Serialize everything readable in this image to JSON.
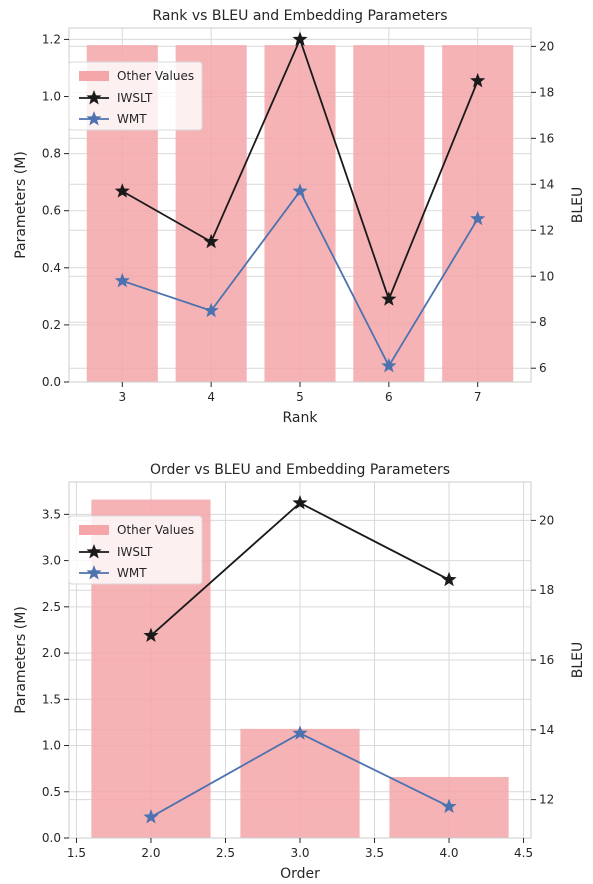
{
  "chart_data": [
    {
      "type": "bar",
      "title": "Rank vs BLEU and Embedding Parameters",
      "xlabel": "Rank",
      "ylabel": "Parameters (M)",
      "ylabel_right": "BLEU",
      "x_ticks": [
        "3",
        "4",
        "5",
        "6",
        "7"
      ],
      "y_ticks": [
        "0.0",
        "0.2",
        "0.4",
        "0.6",
        "0.8",
        "1.0",
        "1.2"
      ],
      "y2_ticks": [
        "6",
        "8",
        "10",
        "12",
        "14",
        "16",
        "18",
        "20"
      ],
      "xlim": [
        2.4,
        7.6
      ],
      "ylim": [
        0,
        1.24
      ],
      "y2lim": [
        5.4,
        20.8
      ],
      "bars": {
        "name": "Other Values",
        "color": "#f4a6a9",
        "x": [
          3,
          4,
          5,
          6,
          7
        ],
        "values": [
          1.18,
          1.18,
          1.18,
          1.18,
          1.18
        ],
        "width": 0.8
      },
      "lines": [
        {
          "name": "IWSLT",
          "color": "#1a1a1a",
          "x": [
            3,
            4,
            5,
            6,
            7
          ],
          "values": [
            13.7,
            11.5,
            20.3,
            9.0,
            18.5
          ]
        },
        {
          "name": "WMT",
          "color": "#4c72b0",
          "x": [
            3,
            4,
            5,
            6,
            7
          ],
          "values": [
            9.8,
            8.5,
            13.7,
            6.1,
            12.5
          ]
        }
      ],
      "legend": [
        "Other Values",
        "IWSLT",
        "WMT"
      ],
      "legend_position": "upper-left",
      "grid": true
    },
    {
      "type": "bar",
      "title": "Order vs BLEU and Embedding Parameters",
      "xlabel": "Order",
      "ylabel": "Parameters (M)",
      "ylabel_right": "BLEU",
      "x_ticks": [
        "1.5",
        "2.0",
        "2.5",
        "3.0",
        "3.5",
        "4.0",
        "4.5"
      ],
      "y_ticks": [
        "0.0",
        "0.5",
        "1.0",
        "1.5",
        "2.0",
        "2.5",
        "3.0",
        "3.5"
      ],
      "y2_ticks": [
        "12",
        "14",
        "16",
        "18",
        "20"
      ],
      "xlim": [
        1.45,
        4.55
      ],
      "ylim": [
        0,
        3.85
      ],
      "y2lim": [
        10.9,
        21.1
      ],
      "bars": {
        "name": "Other Values",
        "color": "#f4a6a9",
        "x": [
          2,
          3,
          4
        ],
        "values": [
          3.66,
          1.18,
          0.66
        ],
        "width": 0.8
      },
      "lines": [
        {
          "name": "IWSLT",
          "color": "#1a1a1a",
          "x": [
            2,
            3,
            4
          ],
          "values": [
            16.7,
            20.5,
            18.3
          ]
        },
        {
          "name": "WMT",
          "color": "#4c72b0",
          "x": [
            2,
            3,
            4
          ],
          "values": [
            11.5,
            13.9,
            11.8
          ]
        }
      ],
      "legend": [
        "Other Values",
        "IWSLT",
        "WMT"
      ],
      "legend_position": "upper-left",
      "grid": true
    }
  ]
}
